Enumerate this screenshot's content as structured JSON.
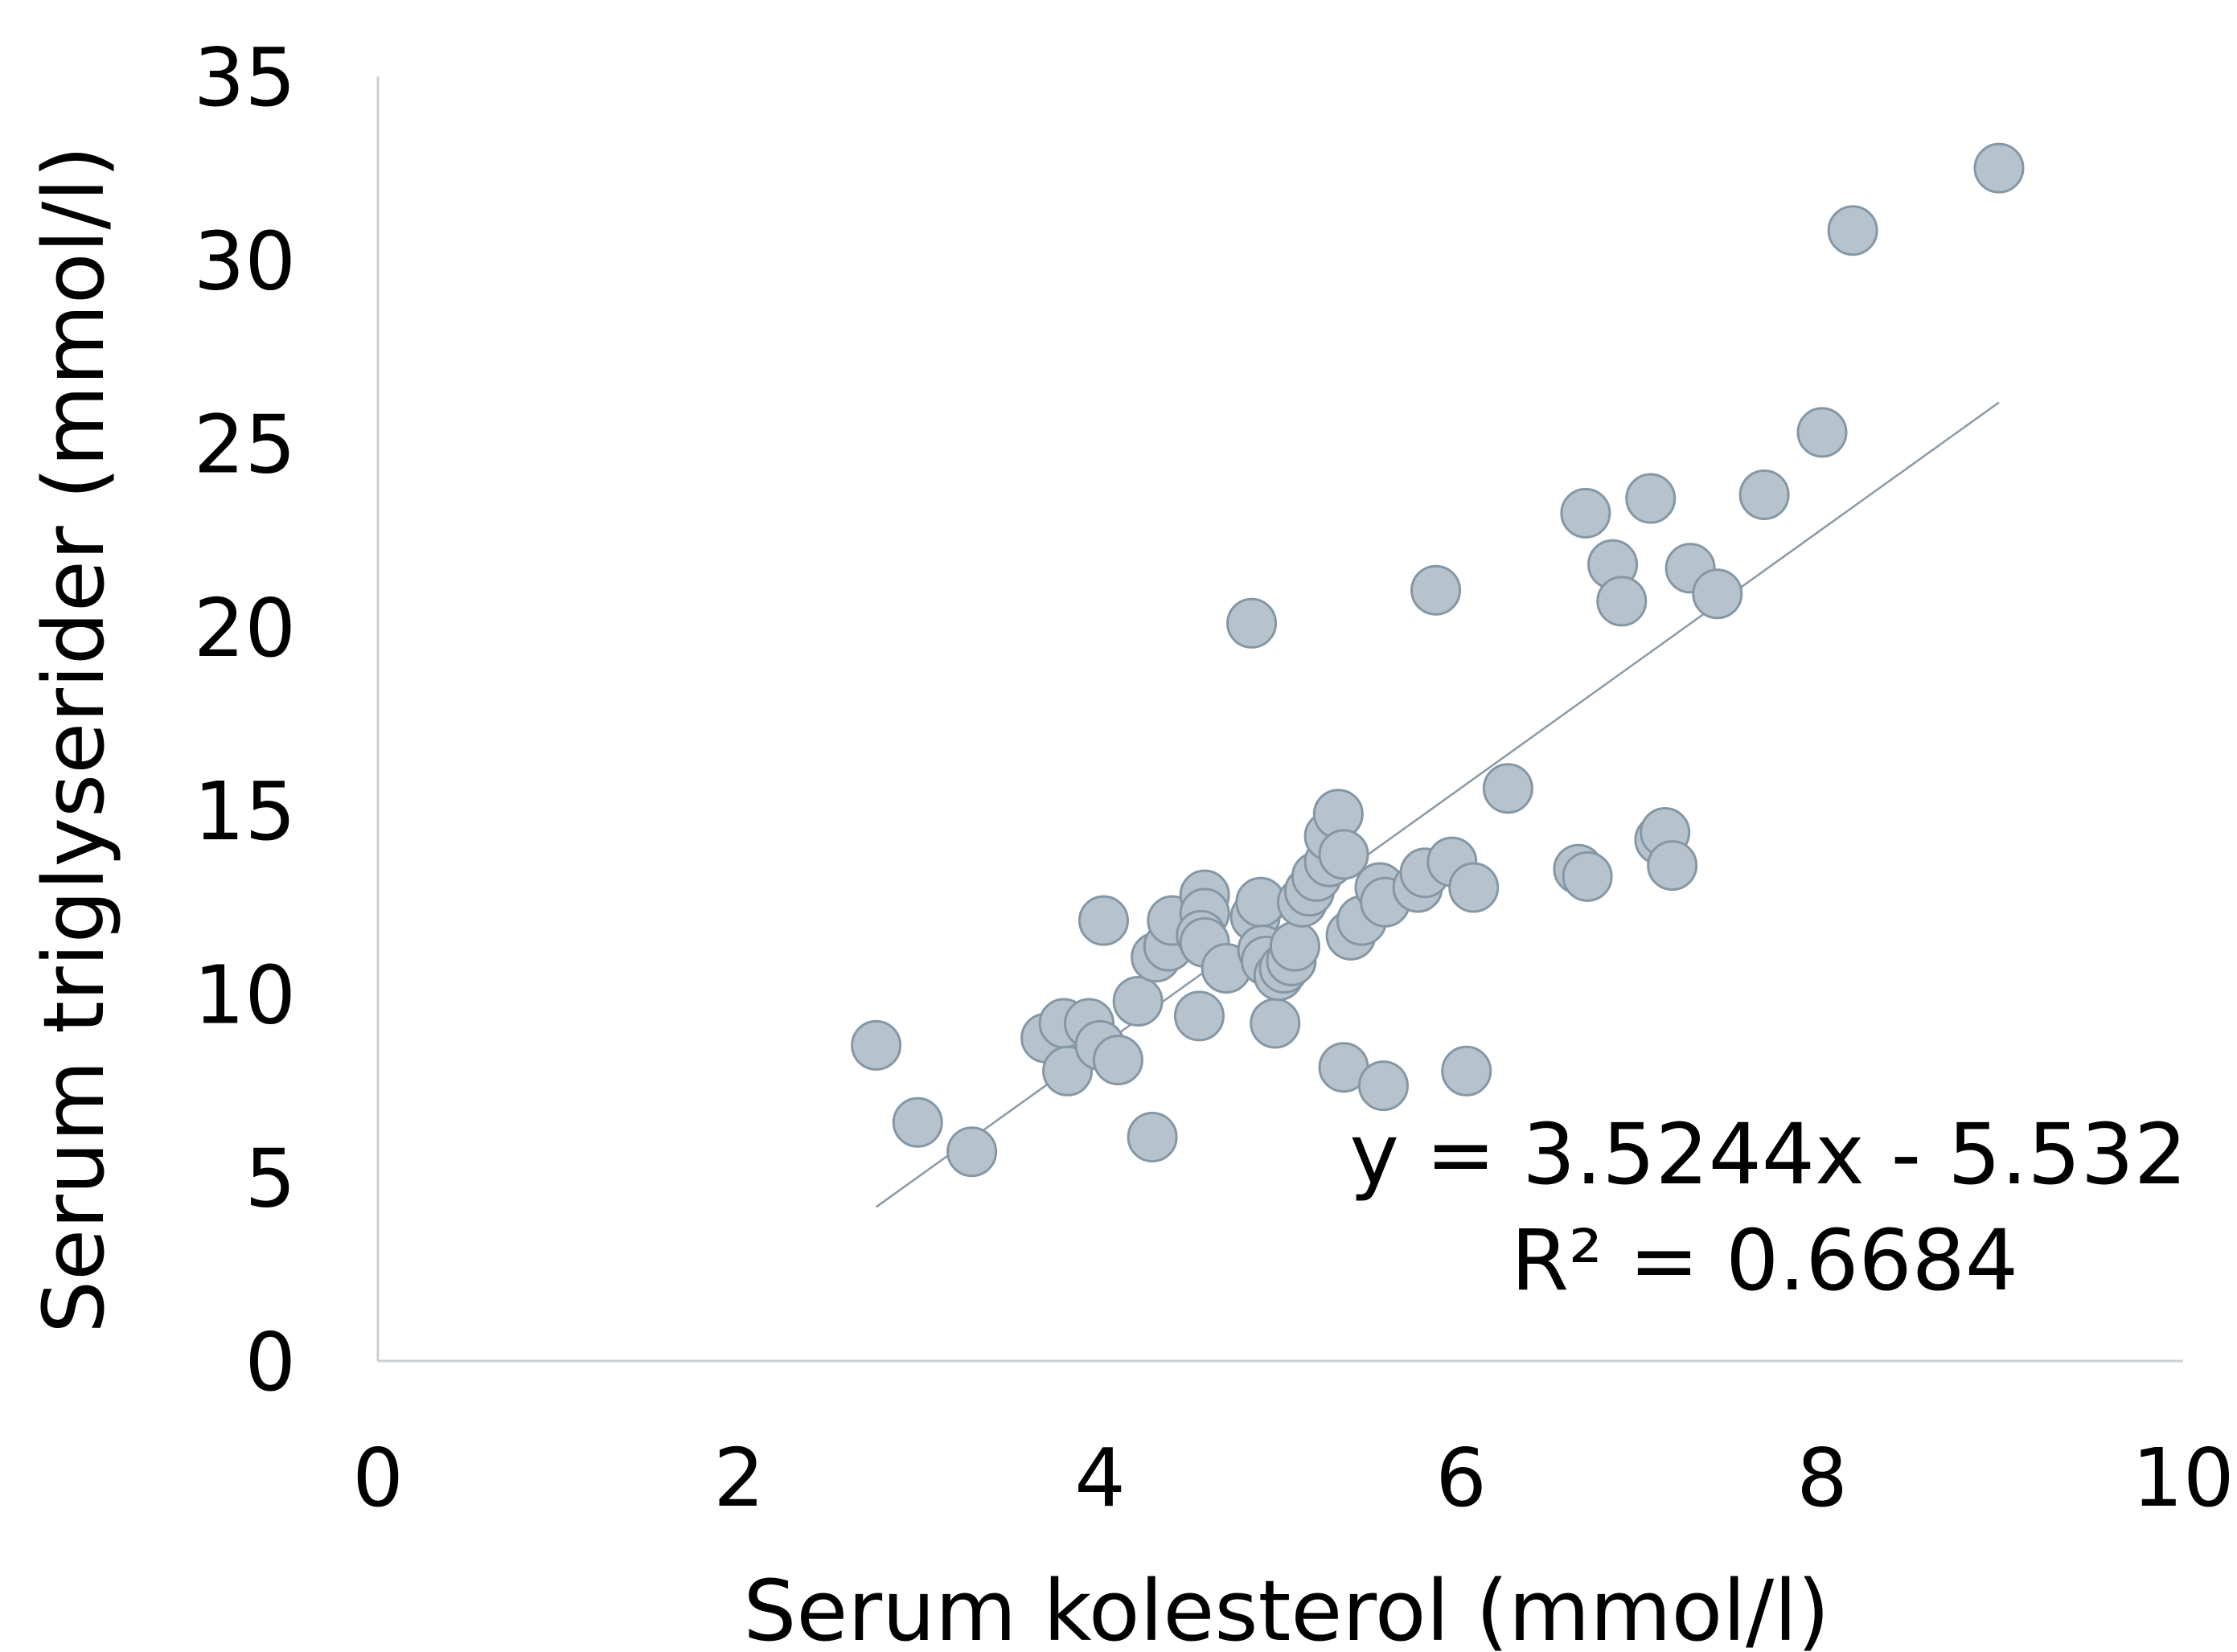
{
  "chart_data": {
    "type": "scatter",
    "title": "",
    "xlabel": "Serum kolesterol (mmol/l)",
    "ylabel": "Serum triglyserider (mmol/l)",
    "xlim": [
      0,
      10
    ],
    "ylim": [
      0,
      35
    ],
    "x_ticks": [
      "0",
      "2",
      "4",
      "6",
      "8",
      "10"
    ],
    "y_ticks": [
      "0",
      "5",
      "10",
      "15",
      "20",
      "25",
      "30",
      "35"
    ],
    "grid": false,
    "legend": "none",
    "colors": {
      "marker_fill": "#b6c3cd",
      "marker_stroke": "#8597a4",
      "trendline": "#8a9aa6",
      "axis": "#c8d0d6"
    },
    "series": [
      {
        "points": [
          [
            2.76,
            8.6
          ],
          [
            2.99,
            6.5
          ],
          [
            3.29,
            5.7
          ],
          [
            3.7,
            8.8
          ],
          [
            3.8,
            9.2
          ],
          [
            3.82,
            7.9
          ],
          [
            3.94,
            9.2
          ],
          [
            4.0,
            8.6
          ],
          [
            4.02,
            12.0
          ],
          [
            4.1,
            8.2
          ],
          [
            4.21,
            9.8
          ],
          [
            4.29,
            6.1
          ],
          [
            4.31,
            11.0
          ],
          [
            4.38,
            11.3
          ],
          [
            4.4,
            12.0
          ],
          [
            4.55,
            9.4
          ],
          [
            4.58,
            12.7
          ],
          [
            4.58,
            12.2
          ],
          [
            4.56,
            11.6
          ],
          [
            4.58,
            11.4
          ],
          [
            4.7,
            10.7
          ],
          [
            4.84,
            20.1
          ],
          [
            4.86,
            12.1
          ],
          [
            4.89,
            12.5
          ],
          [
            4.9,
            11.2
          ],
          [
            4.92,
            10.9
          ],
          [
            4.97,
            9.2
          ],
          [
            4.99,
            10.5
          ],
          [
            5.02,
            10.7
          ],
          [
            5.06,
            10.9
          ],
          [
            5.08,
            11.3
          ],
          [
            5.12,
            12.5
          ],
          [
            5.16,
            12.8
          ],
          [
            5.2,
            13.2
          ],
          [
            5.27,
            13.6
          ],
          [
            5.27,
            14.3
          ],
          [
            5.32,
            14.9
          ],
          [
            5.35,
            13.8
          ],
          [
            5.35,
            8.0
          ],
          [
            5.39,
            11.6
          ],
          [
            5.45,
            12.0
          ],
          [
            5.55,
            12.9
          ],
          [
            5.57,
            7.5
          ],
          [
            5.58,
            12.5
          ],
          [
            5.76,
            12.9
          ],
          [
            5.8,
            13.3
          ],
          [
            5.86,
            21.0
          ],
          [
            5.95,
            13.6
          ],
          [
            6.03,
            7.9
          ],
          [
            6.07,
            12.9
          ],
          [
            6.26,
            15.6
          ],
          [
            6.65,
            13.4
          ],
          [
            6.7,
            13.2
          ],
          [
            6.69,
            23.1
          ],
          [
            6.84,
            21.7
          ],
          [
            6.89,
            20.7
          ],
          [
            7.05,
            23.5
          ],
          [
            7.1,
            14.2
          ],
          [
            7.13,
            14.4
          ],
          [
            7.17,
            13.5
          ],
          [
            7.27,
            21.6
          ],
          [
            7.42,
            20.9
          ],
          [
            7.68,
            23.6
          ],
          [
            8.0,
            25.3
          ],
          [
            8.17,
            30.8
          ],
          [
            8.98,
            32.5
          ]
        ]
      }
    ],
    "trendline": {
      "slope": 3.5244,
      "intercept": -5.532,
      "x_range": [
        2.76,
        8.98
      ]
    },
    "annotations": {
      "equation": "y = 3.5244x - 5.532",
      "r_squared": "R² = 0.6684"
    }
  }
}
